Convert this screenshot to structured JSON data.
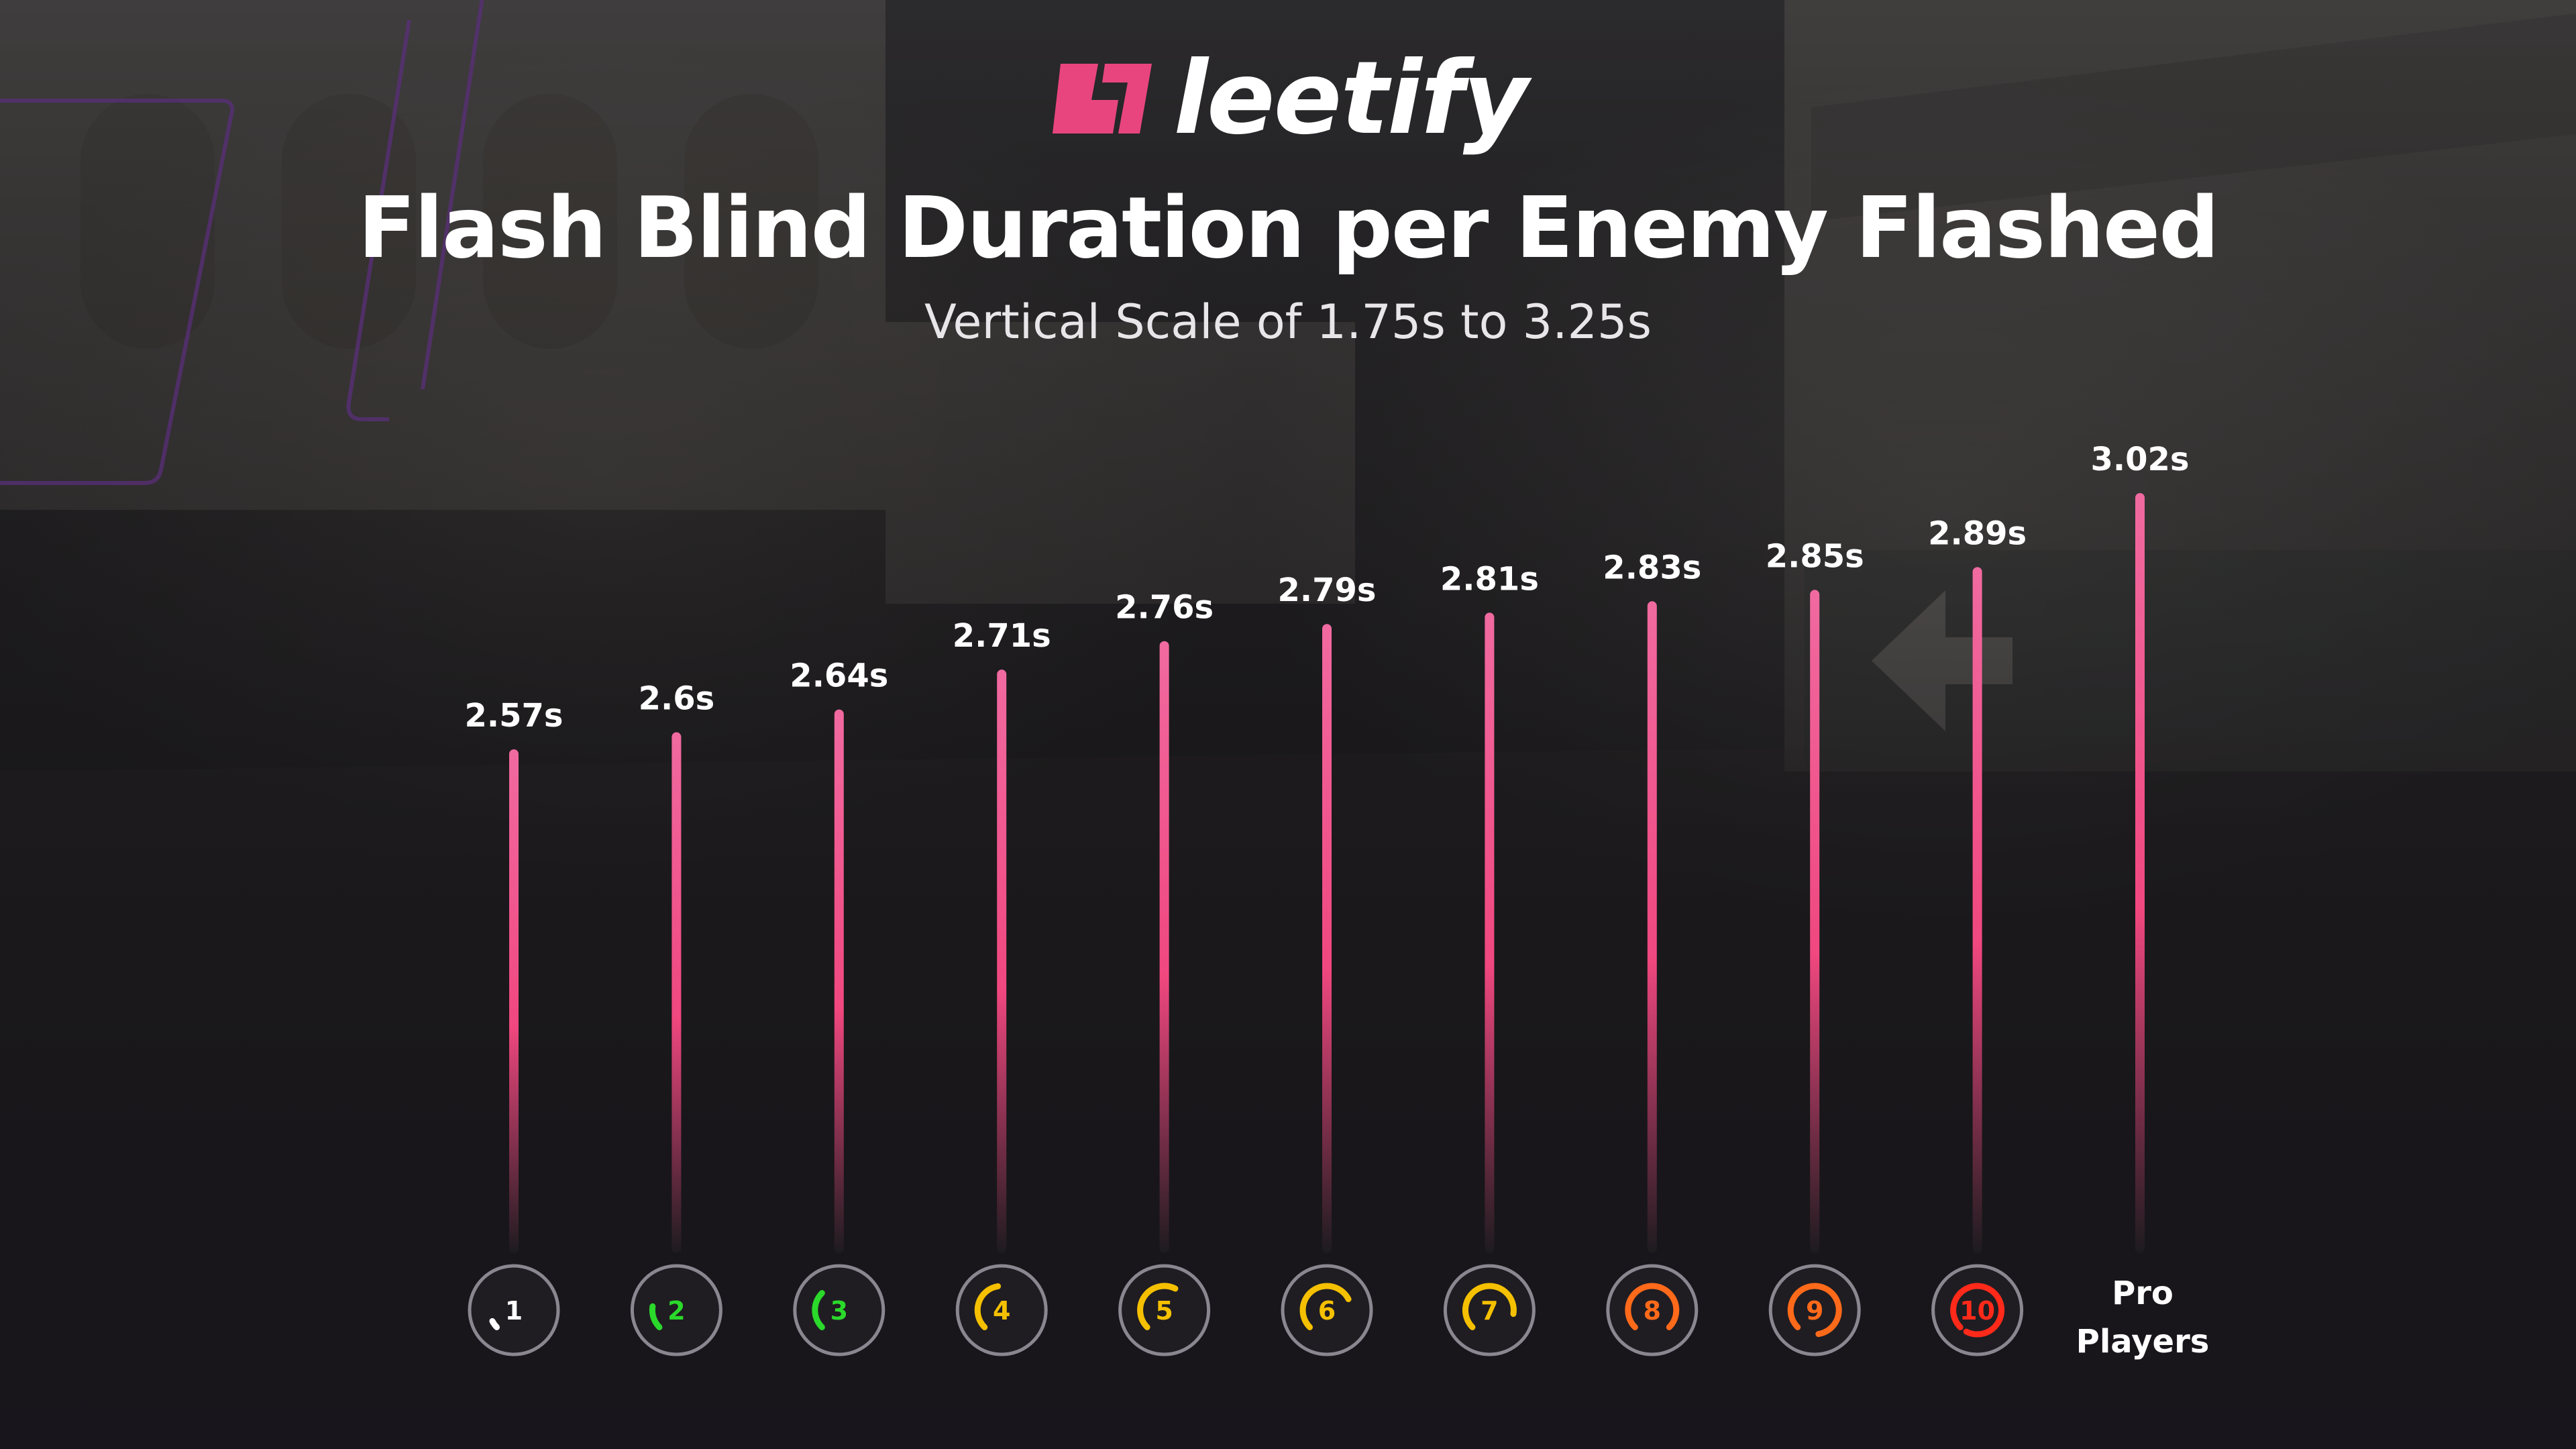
{
  "brand": {
    "name": "leetify",
    "accent": "#e8457f"
  },
  "header": {
    "title": "Flash Blind Duration per Enemy Flashed",
    "subtitle": "Vertical Scale of 1.75s to 3.25s"
  },
  "chart_data": {
    "type": "bar",
    "title": "Flash Blind Duration per Enemy Flashed",
    "subtitle": "Vertical Scale of 1.75s to 3.25s",
    "xlabel": "",
    "ylabel": "",
    "ylim": [
      1.75,
      3.25
    ],
    "grid": false,
    "value_suffix": "s",
    "categories": [
      "1",
      "2",
      "3",
      "4",
      "5",
      "6",
      "7",
      "8",
      "9",
      "10",
      "Pro Players"
    ],
    "values": [
      2.57,
      2.6,
      2.64,
      2.71,
      2.76,
      2.79,
      2.81,
      2.83,
      2.85,
      2.89,
      3.02
    ],
    "labels": [
      "2.57s",
      "2.6s",
      "2.64s",
      "2.71s",
      "2.76s",
      "2.79s",
      "2.81s",
      "2.83s",
      "2.85s",
      "2.89s",
      "3.02s"
    ],
    "category_badges": [
      {
        "label": "1",
        "color": "#ffffff",
        "fill": 0.05
      },
      {
        "label": "2",
        "color": "#2bd92b",
        "fill": 0.15
      },
      {
        "label": "3",
        "color": "#2bd92b",
        "fill": 0.25
      },
      {
        "label": "4",
        "color": "#f5c000",
        "fill": 0.35
      },
      {
        "label": "5",
        "color": "#f5c000",
        "fill": 0.45
      },
      {
        "label": "6",
        "color": "#f5c000",
        "fill": 0.55
      },
      {
        "label": "7",
        "color": "#f5c000",
        "fill": 0.65
      },
      {
        "label": "8",
        "color": "#ff6a1a",
        "fill": 0.75
      },
      {
        "label": "9",
        "color": "#ff6a1a",
        "fill": 0.85
      },
      {
        "label": "10",
        "color": "#ff2a1a",
        "fill": 0.95
      }
    ],
    "last_category_lines": [
      "Pro",
      "Players"
    ],
    "bar_color_top": "#f06aa0",
    "bar_color_mid": "#f0477f",
    "bar_color_bottom": "#1d1b1f"
  }
}
